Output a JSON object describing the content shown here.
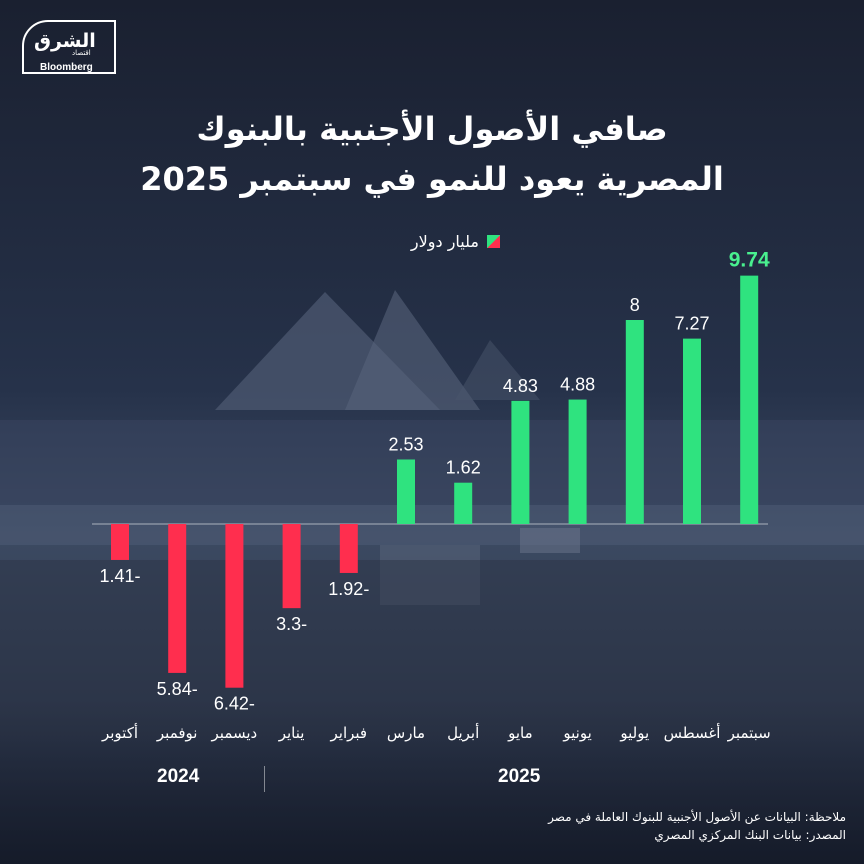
{
  "brand": {
    "name_ar": "الشرق",
    "sub_ar": "اقتصاد",
    "partner": "Bloomberg"
  },
  "title": {
    "line1": "صافي الأصول الأجنبية بالبنوك",
    "line2": "المصرية يعود للنمو في سبتمبر 2025"
  },
  "legend": {
    "label": "مليار دولار",
    "positive_color": "#2fe37f",
    "negative_color": "#ff2e4e"
  },
  "years": {
    "first": "2024",
    "second": "2025"
  },
  "footer": {
    "note": "ملاحظة: البيانات عن الأصول الأجنبية للبنوك العاملة في مصر",
    "source": "المصدر: بيانات البنك المركزي المصري"
  },
  "chart_data": {
    "type": "bar",
    "title": "صافي الأصول الأجنبية بالبنوك المصرية يعود للنمو في سبتمبر 2025",
    "ylabel": "مليار دولار",
    "ylim": [
      -7,
      10
    ],
    "categories": [
      "أكتوبر",
      "نوفمبر",
      "ديسمبر",
      "يناير",
      "فبراير",
      "مارس",
      "أبريل",
      "مايو",
      "يونيو",
      "يوليو",
      "أغسطس",
      "سبتمبر"
    ],
    "values": [
      -1.41,
      -5.84,
      -6.42,
      -3.3,
      -1.92,
      2.53,
      1.62,
      4.83,
      4.88,
      8,
      7.27,
      9.74
    ],
    "value_labels": [
      "1.41-",
      "5.84-",
      "6.42-",
      "3.3-",
      "1.92-",
      "2.53",
      "1.62",
      "4.83",
      "4.88",
      "8",
      "7.27",
      "9.74"
    ],
    "highlight_index": 11,
    "highlight_color": "#49f08f"
  }
}
